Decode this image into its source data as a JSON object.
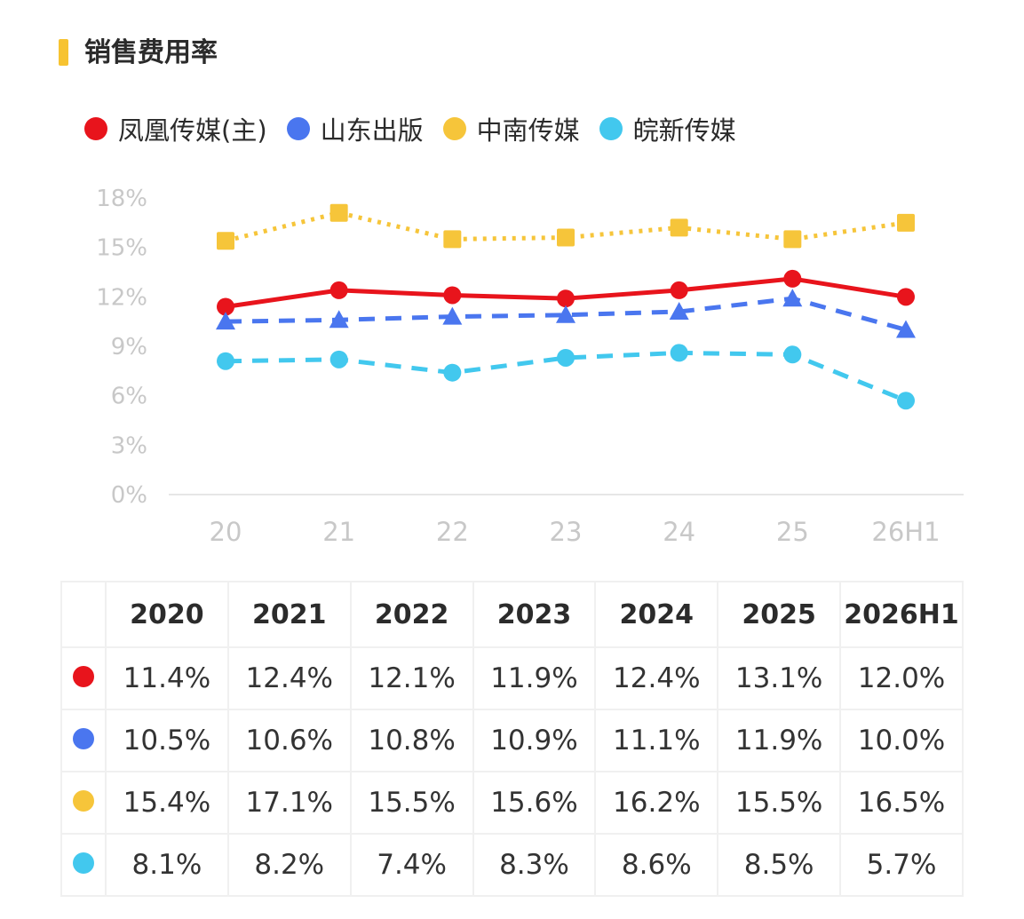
{
  "header": {
    "title": "销售费用率"
  },
  "colors": {
    "accent": "#f7c331",
    "fenghuang": "#e8141c",
    "shandong": "#4a76ef",
    "zhongnan": "#f6c53a",
    "wanxin": "#42c8ee"
  },
  "chart_data": {
    "type": "line",
    "categories": [
      "20",
      "21",
      "22",
      "23",
      "24",
      "25",
      "26H1"
    ],
    "yticks": [
      "0%",
      "3%",
      "6%",
      "9%",
      "12%",
      "15%",
      "18%"
    ],
    "ylim": [
      0,
      18
    ],
    "legend_position": "top",
    "series": [
      {
        "name": "凤凰传媒(主)",
        "color": "#e8141c",
        "marker": "circle",
        "dash": "solid",
        "values": [
          11.4,
          12.4,
          12.1,
          11.9,
          12.4,
          13.1,
          12.0
        ]
      },
      {
        "name": "山东出版",
        "color": "#4a76ef",
        "marker": "triangle",
        "dash": "dashed",
        "values": [
          10.5,
          10.6,
          10.8,
          10.9,
          11.1,
          11.9,
          10.0
        ]
      },
      {
        "name": "中南传媒",
        "color": "#f6c53a",
        "marker": "square",
        "dash": "dotted",
        "values": [
          15.4,
          17.1,
          15.5,
          15.6,
          16.2,
          15.5,
          16.5
        ]
      },
      {
        "name": "皖新传媒",
        "color": "#42c8ee",
        "marker": "circle",
        "dash": "dashed",
        "values": [
          8.1,
          8.2,
          7.4,
          8.3,
          8.6,
          8.5,
          5.7
        ]
      }
    ]
  },
  "table": {
    "headers": [
      "2020",
      "2021",
      "2022",
      "2023",
      "2024",
      "2025",
      "2026H1"
    ],
    "rows": [
      {
        "color": "#e8141c",
        "cells": [
          "11.4%",
          "12.4%",
          "12.1%",
          "11.9%",
          "12.4%",
          "13.1%",
          "12.0%"
        ]
      },
      {
        "color": "#4a76ef",
        "cells": [
          "10.5%",
          "10.6%",
          "10.8%",
          "10.9%",
          "11.1%",
          "11.9%",
          "10.0%"
        ]
      },
      {
        "color": "#f6c53a",
        "cells": [
          "15.4%",
          "17.1%",
          "15.5%",
          "15.6%",
          "16.2%",
          "15.5%",
          "16.5%"
        ]
      },
      {
        "color": "#42c8ee",
        "cells": [
          "8.1%",
          "8.2%",
          "7.4%",
          "8.3%",
          "8.6%",
          "8.5%",
          "5.7%"
        ]
      }
    ]
  }
}
